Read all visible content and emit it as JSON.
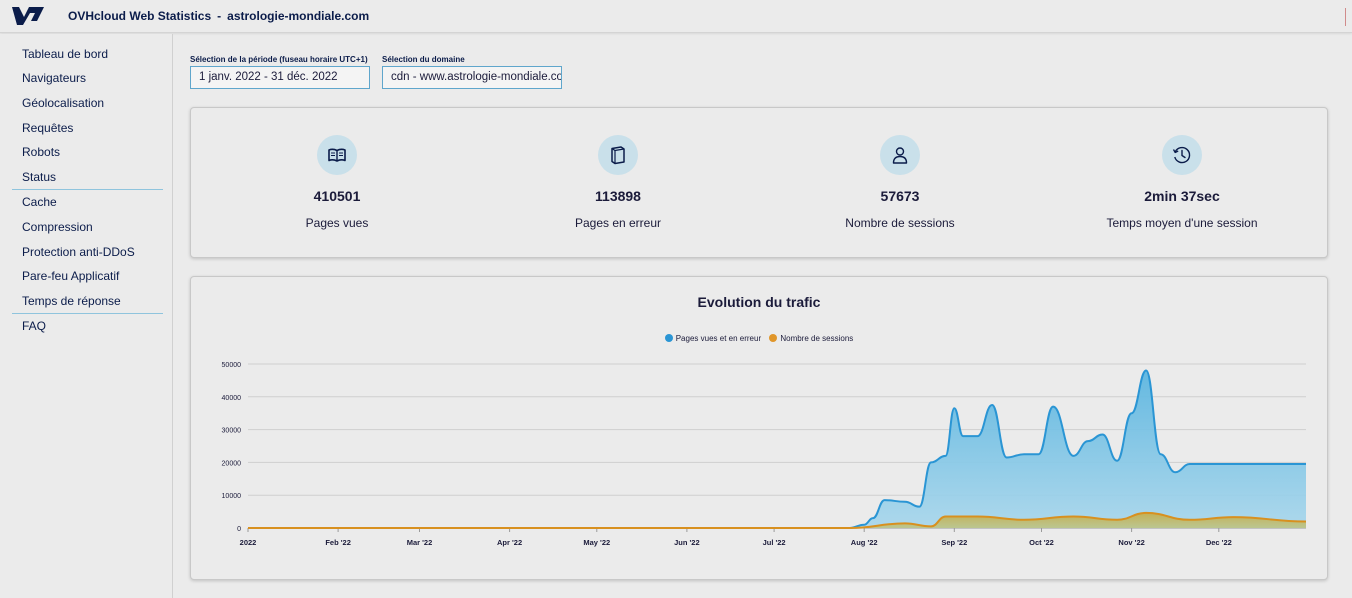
{
  "header": {
    "logo_icon": "ovhcloud-logo-icon",
    "app_name": "OVHcloud Web Statistics",
    "separator": "-",
    "domain": "astrologie-mondiale.com"
  },
  "sidebar": {
    "items": [
      {
        "label": "Tableau de bord"
      },
      {
        "label": "Navigateurs"
      },
      {
        "label": "Géolocalisation"
      },
      {
        "label": "Requêtes"
      },
      {
        "label": "Robots"
      },
      {
        "label": "Status"
      },
      {
        "label": "Cache"
      },
      {
        "label": "Compression"
      },
      {
        "label": "Protection anti-DDoS"
      },
      {
        "label": "Pare-feu Applicatif"
      },
      {
        "label": "Temps de réponse"
      },
      {
        "label": "FAQ"
      }
    ]
  },
  "filters": {
    "period_label": "Sélection de la période (fuseau horaire UTC+1)",
    "period_value": "1 janv. 2022 - 31 déc. 2022",
    "domain_label": "Sélection du domaine",
    "domain_value": "cdn - www.astrologie-mondiale.com"
  },
  "stats": [
    {
      "icon": "open-book-icon",
      "value": "410501",
      "label": "Pages vues"
    },
    {
      "icon": "closed-book-icon",
      "value": "113898",
      "label": "Pages en erreur"
    },
    {
      "icon": "user-icon",
      "value": "57673",
      "label": "Nombre de sessions"
    },
    {
      "icon": "history-clock-icon",
      "value": "2min 37sec",
      "label": "Temps moyen d'une session"
    }
  ],
  "colors": {
    "accent": "#2a95d4",
    "pages_series": "#2a95d4",
    "sessions_series": "#e0962a",
    "nav_text": "#0b1c4a"
  },
  "chart_data": {
    "type": "area",
    "title": "Evolution du trafic",
    "xlabel": "",
    "ylabel": "",
    "x_tick_labels": [
      "2022",
      "Feb '22",
      "Mar '22",
      "Apr '22",
      "May '22",
      "Jun '22",
      "Jul '22",
      "Aug '22",
      "Sep '22",
      "Oct '22",
      "Nov '22",
      "Dec '22"
    ],
    "y_tick_labels": [
      "0",
      "10000",
      "20000",
      "30000",
      "40000",
      "50000"
    ],
    "ylim": [
      0,
      50000
    ],
    "xlim": [
      "2022-01-01",
      "2022-12-31"
    ],
    "grid": true,
    "legend_position": "top-center",
    "series": [
      {
        "name": "Pages vues et en erreur",
        "x": [
          "2022-01-01",
          "2022-07-27",
          "2022-08-01",
          "2022-08-04",
          "2022-08-08",
          "2022-08-15",
          "2022-08-20",
          "2022-08-24",
          "2022-08-29",
          "2022-09-01",
          "2022-09-04",
          "2022-09-09",
          "2022-09-14",
          "2022-09-19",
          "2022-09-25",
          "2022-09-30",
          "2022-10-05",
          "2022-10-12",
          "2022-10-17",
          "2022-10-22",
          "2022-10-27",
          "2022-11-01",
          "2022-11-06",
          "2022-11-11",
          "2022-11-16",
          "2022-11-21",
          "2022-11-26",
          "2022-12-01",
          "2022-12-06",
          "2022-12-11",
          "2022-12-16",
          "2022-12-21",
          "2022-12-31"
        ],
        "values": [
          0,
          0,
          1000,
          3000,
          8500,
          8000,
          6500,
          20000,
          22000,
          36500,
          28000,
          28000,
          37500,
          21500,
          22500,
          22500,
          37000,
          22000,
          26500,
          28500,
          20500,
          35000,
          48000,
          22500,
          17000,
          19500,
          19500,
          19500,
          19500,
          19500,
          19500,
          19500,
          19500
        ]
      },
      {
        "name": "Nombre de sessions",
        "x": [
          "2022-01-01",
          "2022-07-27",
          "2022-08-15",
          "2022-08-24",
          "2022-08-29",
          "2022-09-09",
          "2022-09-25",
          "2022-10-12",
          "2022-10-27",
          "2022-11-06",
          "2022-11-21",
          "2022-12-06",
          "2022-12-31"
        ],
        "values": [
          0,
          0,
          1400,
          500,
          3500,
          3500,
          2500,
          3500,
          2500,
          4600,
          2500,
          3300,
          2000
        ]
      }
    ]
  }
}
